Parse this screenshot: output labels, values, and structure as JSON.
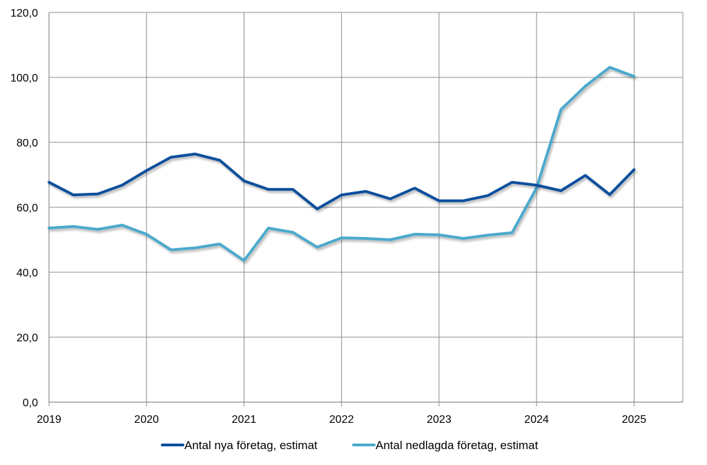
{
  "chart_data": {
    "type": "line",
    "title": "",
    "xlabel": "",
    "ylabel": "",
    "x": [
      "2019 Q1",
      "2019 Q2",
      "2019 Q3",
      "2019 Q4",
      "2020 Q1",
      "2020 Q2",
      "2020 Q3",
      "2020 Q4",
      "2021 Q1",
      "2021 Q2",
      "2021 Q3",
      "2021 Q4",
      "2022 Q1",
      "2022 Q2",
      "2022 Q3",
      "2022 Q4",
      "2023 Q1",
      "2023 Q2",
      "2023 Q3",
      "2023 Q4",
      "2024 Q1",
      "2024 Q2",
      "2024 Q3",
      "2024 Q4",
      "2025 Q1"
    ],
    "x_tick_labels": [
      "2019",
      "2020",
      "2021",
      "2022",
      "2023",
      "2024",
      "2025"
    ],
    "y_tick_labels": [
      "0,0",
      "20,0",
      "40,0",
      "60,0",
      "80,0",
      "100,0",
      "120,0"
    ],
    "xlim": [
      0,
      26
    ],
    "ylim": [
      0,
      120
    ],
    "grid": true,
    "legend_position": "bottom",
    "series": [
      {
        "name": "Antal nya företag, estimat",
        "color": "#0b4f9c",
        "values": [
          67.7,
          63.8,
          64.1,
          66.8,
          71.3,
          75.4,
          76.4,
          74.5,
          68.1,
          65.5,
          65.5,
          59.5,
          63.8,
          64.9,
          62.6,
          65.9,
          62.0,
          62.0,
          63.6,
          67.7,
          66.8,
          65.1,
          69.8,
          63.9,
          71.6
        ]
      },
      {
        "name": "Antal nedlagda företag, estimat",
        "color": "#4ba9cc",
        "values": [
          53.6,
          54.1,
          53.2,
          54.5,
          51.7,
          46.9,
          47.5,
          48.7,
          43.6,
          53.6,
          52.3,
          47.7,
          50.6,
          50.4,
          50.0,
          51.7,
          51.5,
          50.4,
          51.4,
          52.2,
          66.0,
          90.1,
          97.3,
          103.1,
          100.3
        ]
      }
    ]
  }
}
